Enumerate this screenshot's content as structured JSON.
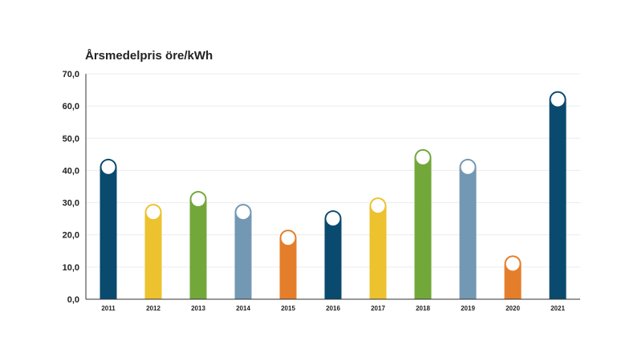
{
  "chart_data": {
    "type": "bar",
    "title": "Årsmedelpris öre/kWh",
    "xlabel": "",
    "ylabel": "",
    "categories": [
      "2011",
      "2012",
      "2013",
      "2014",
      "2015",
      "2016",
      "2017",
      "2018",
      "2019",
      "2020",
      "2021"
    ],
    "values": [
      41.0,
      27.0,
      31.0,
      27.0,
      19.0,
      25.0,
      29.0,
      44.0,
      41.0,
      11.0,
      62.0
    ],
    "ylim": [
      0,
      70
    ],
    "yticks": [
      "0,0",
      "10,0",
      "20,0",
      "30,0",
      "40,0",
      "50,0",
      "60,0",
      "70,0"
    ],
    "bar_colors": [
      "#0a4a6e",
      "#ecc22e",
      "#72a83a",
      "#7398b4",
      "#e47e2b",
      "#0a4a6e",
      "#ecc22e",
      "#72a83a",
      "#7398b4",
      "#e47e2b",
      "#0a4a6e"
    ],
    "grid": true,
    "legend": "none"
  }
}
